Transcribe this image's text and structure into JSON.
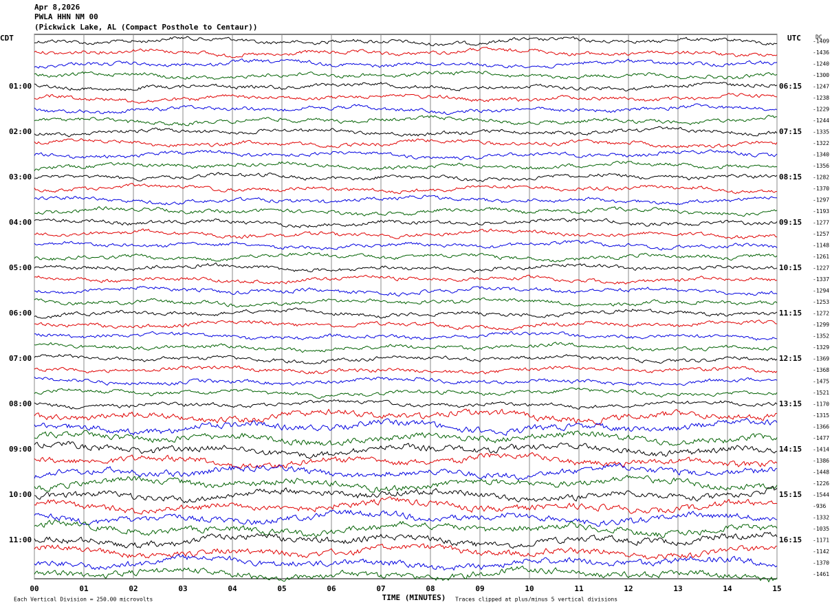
{
  "header": [
    "Apr 8,2026",
    "PWLA HHN NM 00",
    "(Pickwick Lake, AL (Compact Posthole to Centaur))"
  ],
  "chart_data": {
    "type": "helicorder",
    "xlabel": "TIME (MINUTES)",
    "xlim": [
      0,
      15
    ],
    "xticks": [
      {
        "value": 0,
        "label": "00"
      },
      {
        "value": 1,
        "label": "01"
      },
      {
        "value": 2,
        "label": "02"
      },
      {
        "value": 3,
        "label": "03"
      },
      {
        "value": 4,
        "label": "04"
      },
      {
        "value": 5,
        "label": "05"
      },
      {
        "value": 6,
        "label": "06"
      },
      {
        "value": 7,
        "label": "07"
      },
      {
        "value": 8,
        "label": "08"
      },
      {
        "value": 9,
        "label": "09"
      },
      10,
      11,
      12,
      13,
      14,
      15
    ],
    "grid": true,
    "left_axis_title": "CDT",
    "right_axis_title": "UTC",
    "left_times": [
      "01:00",
      "02:00",
      "03:00",
      "04:00",
      "05:00",
      "06:00",
      "07:00",
      "08:00",
      "09:00",
      "10:00",
      "11:00"
    ],
    "right_times": [
      "06:15",
      "07:15",
      "08:15",
      "09:15",
      "10:15",
      "11:15",
      "12:15",
      "13:15",
      "14:15",
      "15:15",
      "16:15"
    ],
    "dc_title": "DC",
    "dc_values": [
      -1409,
      -1436,
      -1240,
      -1300,
      -1247,
      -1238,
      -1229,
      -1244,
      -1335,
      -1322,
      -1340,
      -1356,
      -1282,
      -1370,
      -1297,
      -1193,
      -1277,
      -1257,
      -1148,
      -1261,
      -1227,
      -1337,
      -1294,
      -1253,
      -1272,
      -1299,
      -1352,
      -1329,
      -1369,
      -1368,
      -1475,
      -1521,
      -1170,
      -1315,
      -1366,
      -1477,
      -1414,
      -1386,
      -1448,
      -1226,
      -1544,
      -936,
      -1332,
      -1035,
      -1171,
      -1142,
      -1370,
      -1461
    ],
    "trace_colors": [
      "#000000",
      "#e00000",
      "#0000e0",
      "#006000"
    ],
    "footer_left": "Each Vertical Division =  250.00 microvolts",
    "footer_right": "Traces clipped at plus/minus 5 vertical divisions"
  }
}
